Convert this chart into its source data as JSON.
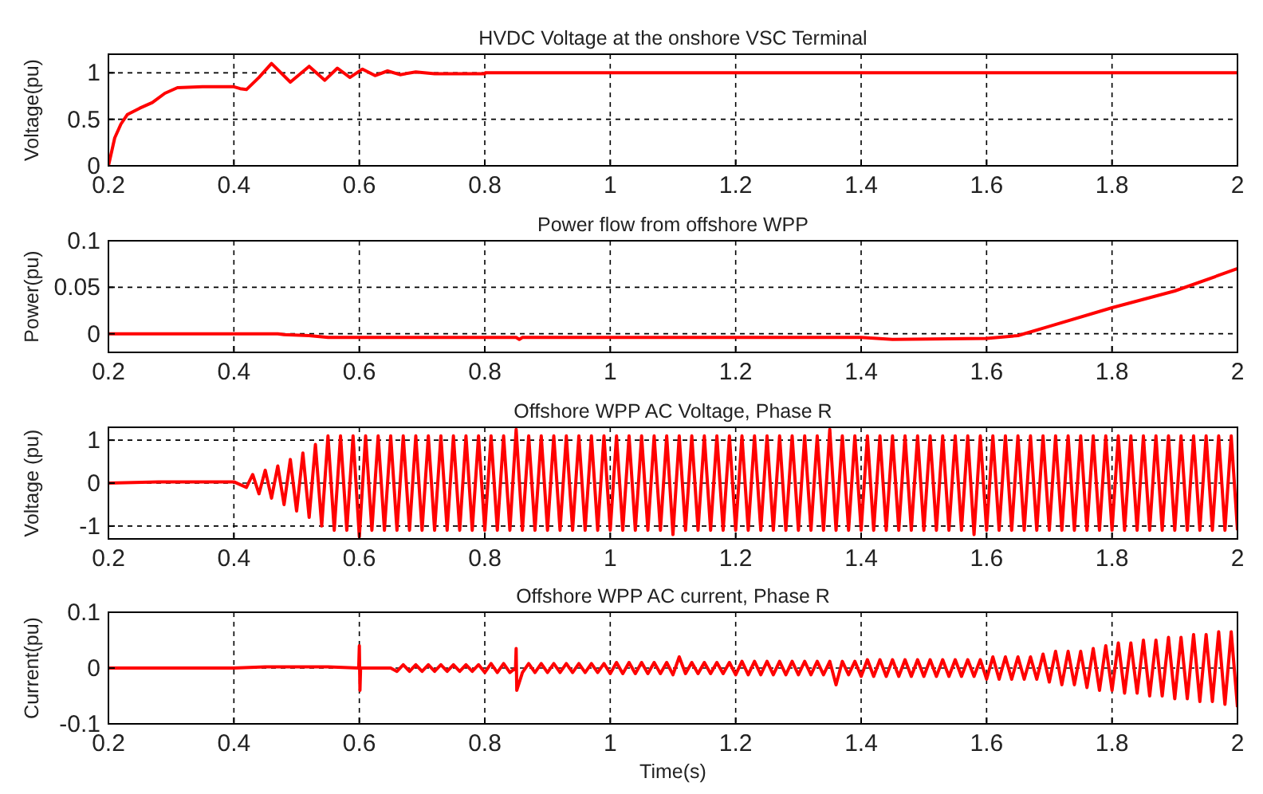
{
  "chart_data": [
    {
      "type": "line",
      "title": "HVDC Voltage at the onshore VSC Terminal",
      "ylabel": "Voltage(pu)",
      "xlim": [
        0.2,
        2
      ],
      "xticks": [
        0.2,
        0.4,
        0.6,
        0.8,
        1,
        1.2,
        1.4,
        1.6,
        1.8,
        2
      ],
      "ylim": [
        0,
        1.2
      ],
      "yticks": [
        0,
        0.5,
        1
      ],
      "grid": true,
      "series": [
        {
          "color": "#ff0000",
          "x": [
            0.2,
            0.205,
            0.21,
            0.22,
            0.23,
            0.25,
            0.27,
            0.29,
            0.31,
            0.35,
            0.4,
            0.41,
            0.42,
            0.44,
            0.46,
            0.49,
            0.52,
            0.545,
            0.565,
            0.585,
            0.605,
            0.625,
            0.645,
            0.665,
            0.69,
            0.72,
            0.8,
            0.801,
            2.0
          ],
          "values": [
            0,
            0.15,
            0.3,
            0.45,
            0.55,
            0.62,
            0.68,
            0.78,
            0.84,
            0.85,
            0.85,
            0.83,
            0.82,
            0.95,
            1.1,
            0.9,
            1.07,
            0.92,
            1.05,
            0.95,
            1.04,
            0.97,
            1.02,
            0.98,
            1.01,
            0.99,
            0.99,
            1.0,
            1.0
          ]
        }
      ]
    },
    {
      "type": "line",
      "title": "Power flow from offshore WPP",
      "ylabel": "Power(pu)",
      "xlim": [
        0.2,
        2
      ],
      "xticks": [
        0.2,
        0.4,
        0.6,
        0.8,
        1,
        1.2,
        1.4,
        1.6,
        1.8,
        2
      ],
      "ylim": [
        -0.02,
        0.1
      ],
      "yticks": [
        0,
        0.05,
        0.1
      ],
      "grid": true,
      "series": [
        {
          "color": "#ff0000",
          "x": [
            0.2,
            0.47,
            0.48,
            0.52,
            0.55,
            0.85,
            0.855,
            0.86,
            1.4,
            1.45,
            1.6,
            1.65,
            1.7,
            1.8,
            1.9,
            2.0
          ],
          "values": [
            0,
            0,
            -0.001,
            -0.002,
            -0.004,
            -0.004,
            -0.006,
            -0.004,
            -0.004,
            -0.006,
            -0.005,
            -0.002,
            0.008,
            0.028,
            0.046,
            0.07
          ]
        }
      ]
    },
    {
      "type": "line",
      "title": "Offshore WPP AC Voltage, Phase R",
      "ylabel": "Voltage (pu)",
      "xlim": [
        0.2,
        2
      ],
      "xticks": [
        0.2,
        0.4,
        0.6,
        0.8,
        1,
        1.2,
        1.4,
        1.6,
        1.8,
        2
      ],
      "ylim": [
        -1.3,
        1.3
      ],
      "yticks": [
        -1,
        0,
        1
      ],
      "grid": true,
      "series": [
        {
          "color": "#ff0000",
          "x": [
            0.2,
            0.28,
            0.4,
            0.42,
            0.43,
            0.44,
            0.45,
            0.46,
            0.47,
            0.48,
            0.49,
            0.5,
            0.51,
            0.52,
            0.53,
            0.54,
            0.55,
            0.56,
            0.57,
            0.58,
            0.59,
            0.6,
            0.61,
            0.62,
            0.63,
            0.64,
            0.65,
            0.66,
            0.67,
            0.68,
            0.69,
            0.7,
            0.71,
            0.72,
            0.73,
            0.74,
            0.75,
            0.76,
            0.77,
            0.78,
            0.79,
            0.8,
            0.81,
            0.82,
            0.83,
            0.84,
            0.85,
            0.86,
            0.87,
            0.88,
            0.89,
            0.9,
            0.91,
            0.92,
            0.93,
            0.94,
            0.95,
            0.96,
            0.97,
            0.98,
            0.99,
            1.0,
            1.01,
            1.02,
            1.03,
            1.04,
            1.05,
            1.06,
            1.07,
            1.08,
            1.09,
            1.1,
            1.11,
            1.12,
            1.13,
            1.14,
            1.15,
            1.16,
            1.17,
            1.18,
            1.19,
            1.2,
            1.21,
            1.22,
            1.23,
            1.24,
            1.25,
            1.26,
            1.27,
            1.28,
            1.29,
            1.3,
            1.31,
            1.32,
            1.33,
            1.34,
            1.35,
            1.36,
            1.37,
            1.38,
            1.39,
            1.4,
            1.41,
            1.42,
            1.43,
            1.44,
            1.45,
            1.46,
            1.47,
            1.48,
            1.49,
            1.5,
            1.51,
            1.52,
            1.53,
            1.54,
            1.55,
            1.56,
            1.57,
            1.58,
            1.59,
            1.6,
            1.61,
            1.62,
            1.63,
            1.64,
            1.65,
            1.66,
            1.67,
            1.68,
            1.69,
            1.7,
            1.71,
            1.72,
            1.73,
            1.74,
            1.75,
            1.76,
            1.77,
            1.78,
            1.79,
            1.8,
            1.81,
            1.82,
            1.83,
            1.84,
            1.85,
            1.86,
            1.87,
            1.88,
            1.89,
            1.9,
            1.91,
            1.92,
            1.93,
            1.94,
            1.95,
            1.96,
            1.97,
            1.98,
            1.99,
            2.0
          ],
          "values": [
            0,
            0.03,
            0.03,
            -0.1,
            0.2,
            -0.25,
            0.3,
            -0.35,
            0.4,
            -0.5,
            0.55,
            -0.65,
            0.7,
            -0.8,
            0.9,
            -1.0,
            1.1,
            -1.1,
            1.1,
            -1.1,
            1.1,
            -1.25,
            1.1,
            -1.1,
            1.1,
            -1.1,
            1.1,
            -1.1,
            1.1,
            -1.1,
            1.1,
            -1.1,
            1.1,
            -1.1,
            1.1,
            -1.1,
            1.1,
            -1.1,
            1.1,
            -1.1,
            1.1,
            -1.1,
            1.1,
            -1.1,
            1.1,
            -1.1,
            1.25,
            -1.1,
            1.1,
            -1.1,
            1.1,
            -1.1,
            1.1,
            -1.1,
            1.1,
            -1.1,
            1.1,
            -1.1,
            1.1,
            -1.1,
            1.1,
            -1.1,
            1.1,
            -1.1,
            1.1,
            -1.1,
            1.1,
            -1.1,
            1.1,
            -1.1,
            1.1,
            -1.2,
            1.1,
            -1.1,
            1.1,
            -1.1,
            1.1,
            -1.1,
            1.1,
            -1.1,
            1.1,
            -1.1,
            1.1,
            -1.1,
            1.1,
            -1.1,
            1.1,
            -1.1,
            1.1,
            -1.1,
            1.1,
            -1.1,
            1.1,
            -1.1,
            1.1,
            -1.1,
            1.25,
            -1.1,
            1.1,
            -1.1,
            1.1,
            -1.1,
            1.1,
            -1.1,
            1.1,
            -1.1,
            1.1,
            -1.1,
            1.1,
            -1.1,
            1.1,
            -1.1,
            1.1,
            -1.1,
            1.1,
            -1.1,
            1.1,
            -1.1,
            1.1,
            -1.2,
            1.1,
            -1.1,
            1.1,
            -1.1,
            1.1,
            -1.1,
            1.1,
            -1.1,
            1.1,
            -1.1,
            1.1,
            -1.1,
            1.1,
            -1.1,
            1.1,
            -1.1,
            1.1,
            -1.1,
            1.1,
            -1.1,
            1.1,
            -1.1,
            1.1,
            -1.1,
            1.1,
            -1.1,
            1.1,
            -1.1,
            1.1,
            -1.1,
            1.1,
            -1.1,
            1.1,
            -1.1,
            1.1,
            -1.1,
            1.1,
            -1.1,
            1.1,
            -1.1,
            1.1,
            -1.1
          ]
        }
      ]
    },
    {
      "type": "line",
      "title": "Offshore WPP AC current, Phase R",
      "ylabel": "Current(pu)",
      "xlabel": "Time(s)",
      "xlim": [
        0.2,
        2
      ],
      "xticks": [
        0.2,
        0.4,
        0.6,
        0.8,
        1,
        1.2,
        1.4,
        1.6,
        1.8,
        2
      ],
      "ylim": [
        -0.1,
        0.1
      ],
      "yticks": [
        -0.1,
        0,
        0.1
      ],
      "grid": true,
      "series": [
        {
          "color": "#ff0000",
          "x": [
            0.2,
            0.4,
            0.45,
            0.5,
            0.55,
            0.599,
            0.6,
            0.601,
            0.602,
            0.65,
            0.66,
            0.67,
            0.68,
            0.69,
            0.7,
            0.71,
            0.72,
            0.73,
            0.74,
            0.75,
            0.76,
            0.77,
            0.78,
            0.79,
            0.8,
            0.81,
            0.82,
            0.83,
            0.84,
            0.849,
            0.85,
            0.851,
            0.86,
            0.87,
            0.88,
            0.89,
            0.9,
            0.91,
            0.92,
            0.93,
            0.94,
            0.95,
            0.96,
            0.97,
            0.98,
            0.99,
            1.0,
            1.01,
            1.02,
            1.03,
            1.04,
            1.05,
            1.06,
            1.07,
            1.08,
            1.09,
            1.1,
            1.11,
            1.12,
            1.13,
            1.14,
            1.15,
            1.16,
            1.17,
            1.18,
            1.19,
            1.2,
            1.21,
            1.22,
            1.23,
            1.24,
            1.25,
            1.26,
            1.27,
            1.28,
            1.29,
            1.3,
            1.31,
            1.32,
            1.33,
            1.34,
            1.35,
            1.36,
            1.37,
            1.38,
            1.39,
            1.4,
            1.41,
            1.42,
            1.43,
            1.44,
            1.45,
            1.46,
            1.47,
            1.48,
            1.49,
            1.5,
            1.51,
            1.52,
            1.53,
            1.54,
            1.55,
            1.56,
            1.57,
            1.58,
            1.59,
            1.6,
            1.61,
            1.62,
            1.63,
            1.64,
            1.65,
            1.66,
            1.67,
            1.68,
            1.69,
            1.7,
            1.71,
            1.72,
            1.73,
            1.74,
            1.75,
            1.76,
            1.77,
            1.78,
            1.79,
            1.8,
            1.81,
            1.82,
            1.83,
            1.84,
            1.85,
            1.86,
            1.87,
            1.88,
            1.89,
            1.9,
            1.91,
            1.92,
            1.93,
            1.94,
            1.95,
            1.96,
            1.97,
            1.98,
            1.99,
            2.0
          ],
          "values": [
            0,
            0,
            0.002,
            0.002,
            0.002,
            0,
            0.04,
            -0.04,
            0,
            0,
            -0.006,
            0.006,
            -0.006,
            0.006,
            -0.006,
            0.006,
            -0.006,
            0.006,
            -0.006,
            0.006,
            -0.006,
            0.006,
            -0.006,
            0.006,
            -0.008,
            0.008,
            -0.008,
            0.008,
            -0.008,
            0,
            0.035,
            -0.04,
            -0.008,
            0.008,
            -0.008,
            0.008,
            -0.008,
            0.008,
            -0.008,
            0.008,
            -0.008,
            0.008,
            -0.008,
            0.008,
            -0.008,
            0.008,
            -0.01,
            0.01,
            -0.01,
            0.01,
            -0.01,
            0.01,
            -0.01,
            0.01,
            -0.01,
            0.01,
            -0.012,
            0.02,
            -0.01,
            0.01,
            -0.01,
            0.01,
            -0.01,
            0.01,
            -0.01,
            0.01,
            -0.012,
            0.012,
            -0.012,
            0.012,
            -0.012,
            0.012,
            -0.012,
            0.012,
            -0.012,
            0.012,
            -0.012,
            0.012,
            -0.012,
            0.012,
            -0.012,
            0.012,
            -0.03,
            0.012,
            -0.012,
            0.012,
            -0.015,
            0.015,
            -0.015,
            0.015,
            -0.015,
            0.015,
            -0.015,
            0.015,
            -0.015,
            0.015,
            -0.015,
            0.015,
            -0.015,
            0.015,
            -0.015,
            0.015,
            -0.015,
            0.015,
            -0.015,
            0.015,
            -0.02,
            0.02,
            -0.02,
            0.02,
            -0.02,
            0.02,
            -0.02,
            0.02,
            -0.02,
            0.025,
            -0.025,
            0.03,
            -0.03,
            0.03,
            -0.03,
            0.03,
            -0.035,
            0.035,
            -0.04,
            0.04,
            -0.04,
            0.045,
            -0.045,
            0.045,
            -0.045,
            0.05,
            -0.05,
            0.05,
            -0.05,
            0.055,
            -0.055,
            0.055,
            -0.055,
            0.06,
            -0.06,
            0.06,
            -0.06,
            0.065,
            -0.065,
            0.065,
            -0.07
          ]
        }
      ]
    }
  ]
}
